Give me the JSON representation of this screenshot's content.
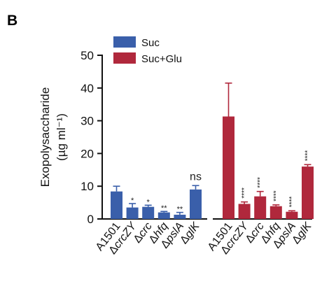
{
  "panel_label": "B",
  "chart_data": {
    "type": "bar",
    "ylabel": "Exopolysaccharide",
    "ylabel_units": "(µg ml⁻¹)",
    "ylim": [
      0,
      50
    ],
    "yticks": [
      0,
      10,
      20,
      30,
      40,
      50
    ],
    "legend": {
      "placement": "top-left"
    },
    "series": [
      {
        "name": "Suc",
        "color": "#3a5faa",
        "categories": [
          "A1501",
          "ΔcrcZY",
          "Δcrc",
          "Δhfq",
          "ΔpslA",
          "ΔglK"
        ],
        "values": [
          8.4,
          3.5,
          3.7,
          2.0,
          1.3,
          9.0
        ],
        "errors": [
          1.6,
          1.2,
          0.5,
          0.3,
          0.7,
          1.2
        ],
        "significance": [
          "",
          "*",
          "*",
          "**",
          "**",
          "ns"
        ]
      },
      {
        "name": "Suc+Glu",
        "color": "#b0283c",
        "categories": [
          "A1501",
          "ΔcrcZY",
          "Δcrc",
          "Δhfq",
          "ΔpslA",
          "ΔglK"
        ],
        "values": [
          31.3,
          4.6,
          6.9,
          3.9,
          2.2,
          16.0
        ],
        "errors": [
          10.2,
          0.6,
          1.5,
          0.4,
          0.3,
          0.6
        ],
        "significance": [
          "",
          "****",
          "****",
          "****",
          "****",
          "****"
        ]
      }
    ]
  }
}
